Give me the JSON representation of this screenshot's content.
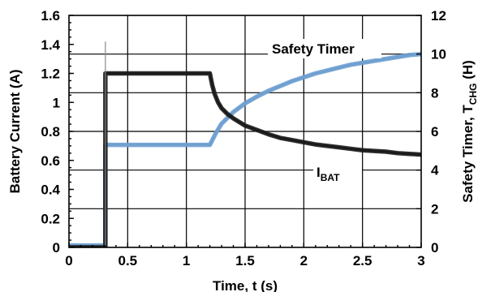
{
  "chart_data": {
    "type": "line",
    "xlabel": "Time, t (s)",
    "ylabel_left": "Battery Current (A)",
    "ylabel_right": "Safety Timer, T",
    "ylabel_right_sub": "CHG",
    "ylabel_right_unit": " (H)",
    "xlim": [
      0,
      3
    ],
    "ylim_left": [
      0,
      1.6
    ],
    "ylim_right": [
      0,
      12
    ],
    "x_ticks": [
      "0",
      "0.5",
      "1",
      "1.5",
      "2",
      "2.5",
      "3"
    ],
    "y_left_ticks": [
      "0",
      "0.2",
      "0.4",
      "0.6",
      "0.8",
      "1",
      "1.2",
      "1.4",
      "1.6"
    ],
    "y_right_ticks": [
      "0",
      "2",
      "4",
      "6",
      "8",
      "10",
      "12"
    ],
    "grid": true,
    "annotations": {
      "timer_label": "Safety Timer",
      "ibat_label_main": "I",
      "ibat_label_sub": "BAT"
    },
    "series": [
      {
        "name": "I_BAT",
        "axis": "left",
        "color": "#1a1a1a",
        "points": [
          [
            0.0,
            0.0
          ],
          [
            0.31,
            0.0
          ],
          [
            0.31,
            1.2
          ],
          [
            0.5,
            1.2
          ],
          [
            0.8,
            1.2
          ],
          [
            1.0,
            1.2
          ],
          [
            1.2,
            1.2
          ],
          [
            1.22,
            1.12
          ],
          [
            1.24,
            1.06
          ],
          [
            1.27,
            1.0
          ],
          [
            1.3,
            0.96
          ],
          [
            1.35,
            0.92
          ],
          [
            1.4,
            0.89
          ],
          [
            1.5,
            0.84
          ],
          [
            1.6,
            0.81
          ],
          [
            1.7,
            0.78
          ],
          [
            1.8,
            0.755
          ],
          [
            1.9,
            0.74
          ],
          [
            2.0,
            0.725
          ],
          [
            2.1,
            0.71
          ],
          [
            2.2,
            0.7
          ],
          [
            2.3,
            0.69
          ],
          [
            2.4,
            0.68
          ],
          [
            2.5,
            0.67
          ],
          [
            2.6,
            0.665
          ],
          [
            2.7,
            0.66
          ],
          [
            2.8,
            0.65
          ],
          [
            2.9,
            0.645
          ],
          [
            3.0,
            0.64
          ]
        ]
      },
      {
        "name": "Safety Timer",
        "axis": "right",
        "color": "#6e9fd0",
        "points": [
          [
            0.0,
            0.1
          ],
          [
            0.31,
            0.1
          ],
          [
            0.31,
            5.3
          ],
          [
            0.6,
            5.3
          ],
          [
            0.9,
            5.3
          ],
          [
            1.2,
            5.3
          ],
          [
            1.25,
            5.9
          ],
          [
            1.3,
            6.4
          ],
          [
            1.4,
            7.0
          ],
          [
            1.5,
            7.45
          ],
          [
            1.6,
            7.8
          ],
          [
            1.7,
            8.1
          ],
          [
            1.8,
            8.35
          ],
          [
            1.9,
            8.6
          ],
          [
            2.0,
            8.8
          ],
          [
            2.1,
            9.0
          ],
          [
            2.2,
            9.15
          ],
          [
            2.3,
            9.3
          ],
          [
            2.4,
            9.45
          ],
          [
            2.5,
            9.55
          ],
          [
            2.6,
            9.65
          ],
          [
            2.7,
            9.75
          ],
          [
            2.8,
            9.85
          ],
          [
            2.9,
            9.95
          ],
          [
            3.0,
            10.0
          ]
        ]
      }
    ]
  }
}
